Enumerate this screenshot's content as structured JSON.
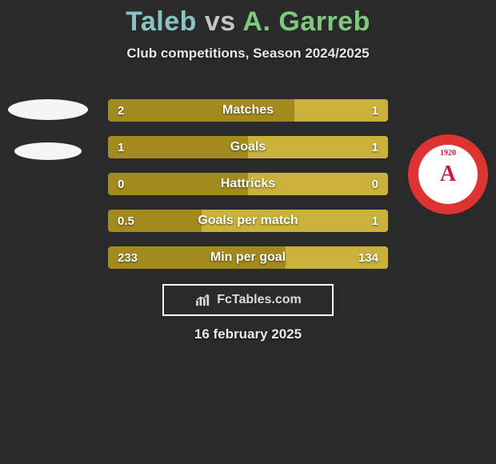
{
  "background_color": "#2a2a2a",
  "title": {
    "player1": "Taleb",
    "vs": "vs",
    "player2": "A. Garreb",
    "player1_color": "#86c5c5",
    "vs_color": "#c5c5c5",
    "player2_color": "#7fc97f",
    "fontsize": 34
  },
  "subtitle": "Club competitions, Season 2024/2025",
  "watermark": "FcTables.com",
  "date": "16 february 2025",
  "bar_colors": {
    "left": "#a38a1e",
    "right": "#c9b13a"
  },
  "bars": [
    {
      "label": "Matches",
      "left_val": "2",
      "right_val": "1",
      "left_pct": 66.7,
      "right_pct": 33.3
    },
    {
      "label": "Goals",
      "left_val": "1",
      "right_val": "1",
      "left_pct": 50.0,
      "right_pct": 50.0
    },
    {
      "label": "Hattricks",
      "left_val": "0",
      "right_val": "0",
      "left_pct": 50.0,
      "right_pct": 50.0
    },
    {
      "label": "Goals per match",
      "left_val": "0.5",
      "right_val": "1",
      "left_pct": 33.3,
      "right_pct": 66.7
    },
    {
      "label": "Min per goal",
      "left_val": "233",
      "right_val": "134",
      "left_pct": 63.5,
      "right_pct": 36.5
    }
  ],
  "logo_right": {
    "letter": "A",
    "year": "1920"
  }
}
